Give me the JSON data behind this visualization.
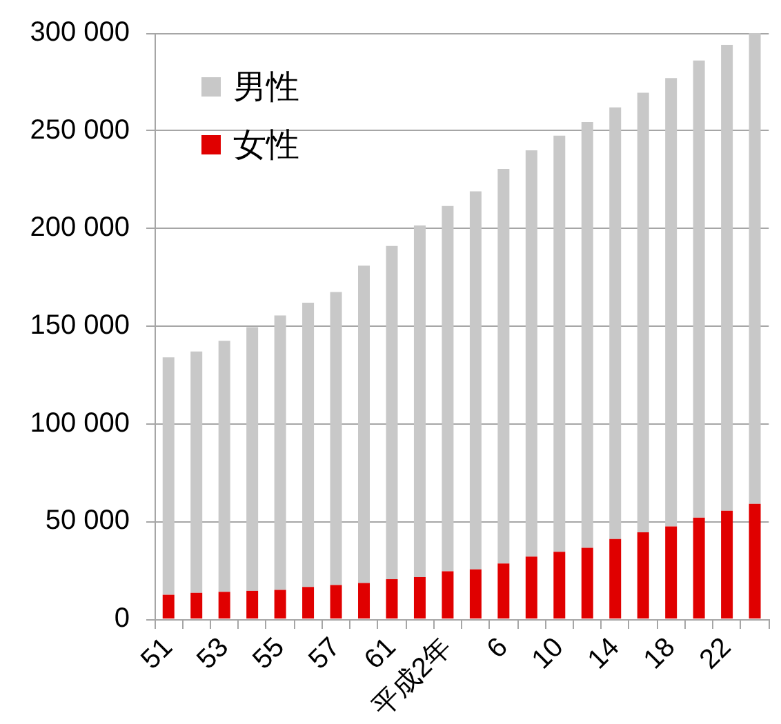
{
  "chart_data": {
    "type": "bar",
    "stacked": true,
    "categories": [
      "51",
      null,
      "53",
      null,
      "55",
      null,
      "57",
      null,
      "61",
      null,
      "平成2年",
      null,
      "6",
      null,
      "10",
      null,
      "14",
      null,
      "18",
      null,
      "22",
      null
    ],
    "series": [
      {
        "name": "女性",
        "color": "#e00000",
        "values": [
          12500,
          13500,
          14000,
          14500,
          15000,
          16500,
          17500,
          18500,
          20500,
          21500,
          24500,
          25500,
          28500,
          32000,
          34500,
          36500,
          41000,
          44500,
          47500,
          52000,
          55500,
          59000
        ]
      },
      {
        "name": "男性",
        "color": "#c8c8c8",
        "values": [
          121500,
          123500,
          128500,
          135000,
          140500,
          145500,
          150000,
          162500,
          170500,
          180000,
          187000,
          193500,
          202000,
          208000,
          213000,
          218000,
          221000,
          225000,
          229500,
          234000,
          238500,
          241000
        ]
      }
    ],
    "ylim": [
      0,
      300000
    ],
    "yticks": [
      0,
      {
        "value": 50000,
        "label": "50 000"
      },
      {
        "value": 100000,
        "label": "100 000"
      },
      {
        "value": 150000,
        "label": "150 000"
      },
      {
        "value": 200000,
        "label": "200 000"
      },
      {
        "value": 250000,
        "label": "250 000"
      },
      {
        "value": 300000,
        "label": "300 000"
      }
    ],
    "grid": "y",
    "legend": "top left"
  }
}
